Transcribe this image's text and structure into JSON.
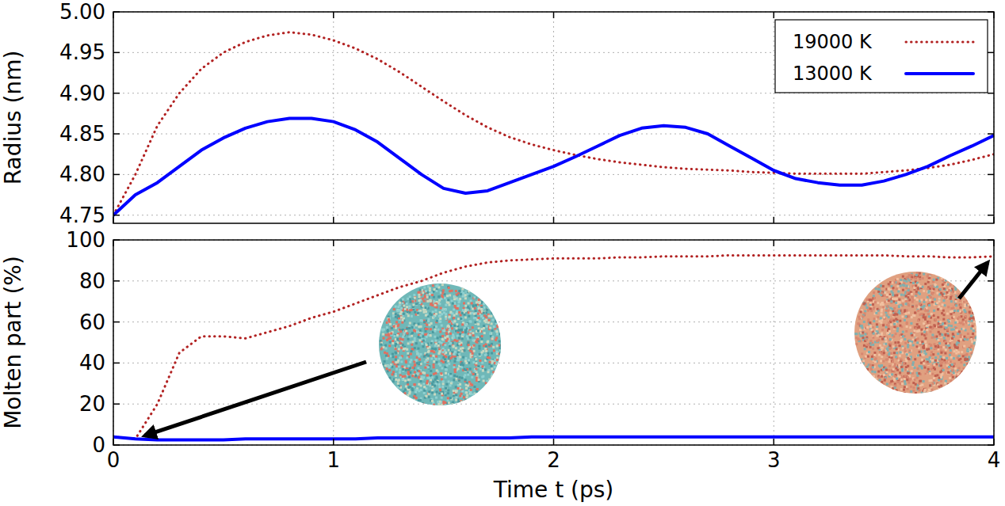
{
  "chart_data": [
    {
      "type": "line",
      "x": [
        0,
        0.1,
        0.2,
        0.3,
        0.4,
        0.5,
        0.6,
        0.7,
        0.8,
        0.9,
        1.0,
        1.1,
        1.2,
        1.3,
        1.4,
        1.5,
        1.6,
        1.7,
        1.8,
        1.9,
        2.0,
        2.1,
        2.2,
        2.3,
        2.4,
        2.5,
        2.6,
        2.7,
        2.8,
        2.9,
        3.0,
        3.1,
        3.2,
        3.3,
        3.4,
        3.5,
        3.6,
        3.7,
        3.8,
        3.9,
        4.0
      ],
      "xlim": [
        0,
        4
      ],
      "xticks": [
        0,
        1,
        2,
        3,
        4
      ],
      "ylim": [
        4.74,
        5.0
      ],
      "yticks": [
        4.75,
        {
          "value": 4.8,
          "label": "4.80"
        },
        4.85,
        {
          "value": 4.9,
          "label": "4.90"
        },
        4.95,
        {
          "value": 5,
          "label": "5.00"
        }
      ],
      "y_label": "Radius (nm)",
      "grid": true,
      "legend": "top-right",
      "tick_labels": "y",
      "series": [
        {
          "name": "19000 K",
          "color": "#b22222",
          "line_style": "dotted",
          "values": [
            4.75,
            4.8,
            4.86,
            4.9,
            4.93,
            4.95,
            4.963,
            4.971,
            4.975,
            4.972,
            4.965,
            4.955,
            4.942,
            4.926,
            4.908,
            4.89,
            4.873,
            4.858,
            4.846,
            4.837,
            4.83,
            4.824,
            4.819,
            4.815,
            4.812,
            4.809,
            4.807,
            4.806,
            4.805,
            4.803,
            4.802,
            4.801,
            4.801,
            4.801,
            4.801,
            4.803,
            4.805,
            4.808,
            4.812,
            4.818,
            4.825
          ]
        },
        {
          "name": "13000 K",
          "color": "#0000ff",
          "line_style": "solid",
          "values": [
            4.75,
            4.775,
            4.79,
            4.81,
            4.83,
            4.845,
            4.857,
            4.865,
            4.869,
            4.869,
            4.865,
            4.855,
            4.84,
            4.82,
            4.8,
            4.783,
            4.777,
            4.78,
            4.79,
            4.8,
            4.81,
            4.822,
            4.835,
            4.848,
            4.857,
            4.86,
            4.858,
            4.85,
            4.835,
            4.82,
            4.805,
            4.795,
            4.79,
            4.787,
            4.787,
            4.792,
            4.8,
            4.81,
            4.823,
            4.835,
            4.848
          ]
        }
      ]
    },
    {
      "type": "line",
      "x": [
        0,
        0.1,
        0.2,
        0.3,
        0.4,
        0.5,
        0.6,
        0.7,
        0.8,
        0.9,
        1.0,
        1.1,
        1.2,
        1.3,
        1.4,
        1.5,
        1.6,
        1.7,
        1.8,
        1.9,
        2.0,
        2.1,
        2.2,
        2.3,
        2.4,
        2.5,
        2.6,
        2.7,
        2.8,
        2.9,
        3.0,
        3.1,
        3.2,
        3.3,
        3.4,
        3.5,
        3.6,
        3.7,
        3.8,
        3.9,
        4.0
      ],
      "xlim": [
        0,
        4
      ],
      "xticks": [
        0,
        1,
        2,
        3,
        4
      ],
      "ylim": [
        0,
        100
      ],
      "yticks": [
        0,
        20,
        40,
        60,
        80,
        100
      ],
      "x_label": "Time t (ps)",
      "y_label": "Molten part (%)",
      "grid": true,
      "series": [
        {
          "name": "19000 K",
          "color": "#b22222",
          "line_style": "dotted",
          "values": [
            4,
            3,
            20,
            45,
            53,
            53,
            52,
            55,
            58,
            62,
            65,
            69,
            73,
            77,
            80,
            84,
            87,
            89,
            90,
            90.5,
            91,
            91,
            91,
            91.5,
            91.5,
            92,
            92,
            92,
            92.5,
            92.5,
            92.5,
            92.5,
            92.5,
            92.5,
            92.5,
            92.5,
            92,
            92,
            91.5,
            91.5,
            92
          ]
        },
        {
          "name": "13000 K",
          "color": "#0000ff",
          "line_style": "solid",
          "values": [
            4,
            3,
            2.5,
            2.5,
            2.5,
            2.5,
            3,
            3,
            3,
            3,
            3,
            3,
            3.5,
            3.5,
            3.5,
            3.5,
            3.5,
            3.5,
            3.5,
            4,
            4,
            4,
            4,
            4,
            4,
            4,
            4,
            4,
            4,
            4,
            4,
            4,
            4,
            4,
            4,
            4,
            4,
            4,
            4,
            4,
            4
          ]
        }
      ]
    }
  ]
}
